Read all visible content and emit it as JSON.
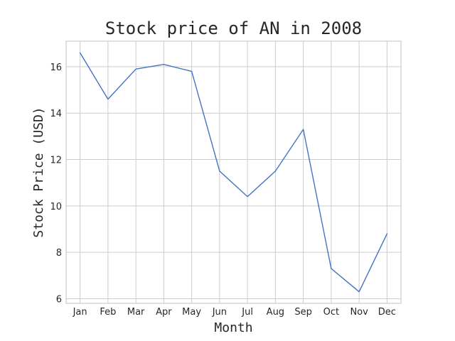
{
  "chart_data": {
    "type": "line",
    "title": "Stock price of AN in 2008",
    "xlabel": "Month",
    "ylabel": "Stock Price (USD)",
    "categories": [
      "Jan",
      "Feb",
      "Mar",
      "Apr",
      "May",
      "Jun",
      "Jul",
      "Aug",
      "Sep",
      "Oct",
      "Nov",
      "Dec"
    ],
    "series": [
      {
        "values": [
          16.6,
          14.6,
          15.9,
          16.1,
          15.8,
          11.5,
          10.4,
          11.5,
          13.3,
          7.3,
          6.3,
          8.8
        ]
      }
    ],
    "ylim": [
      5.8,
      17.1
    ],
    "yticks": [
      6,
      8,
      10,
      12,
      14,
      16
    ],
    "grid": true,
    "line_color": "#4472c4",
    "grid_color": "#cccccc",
    "frame_color": "#cccccc"
  }
}
